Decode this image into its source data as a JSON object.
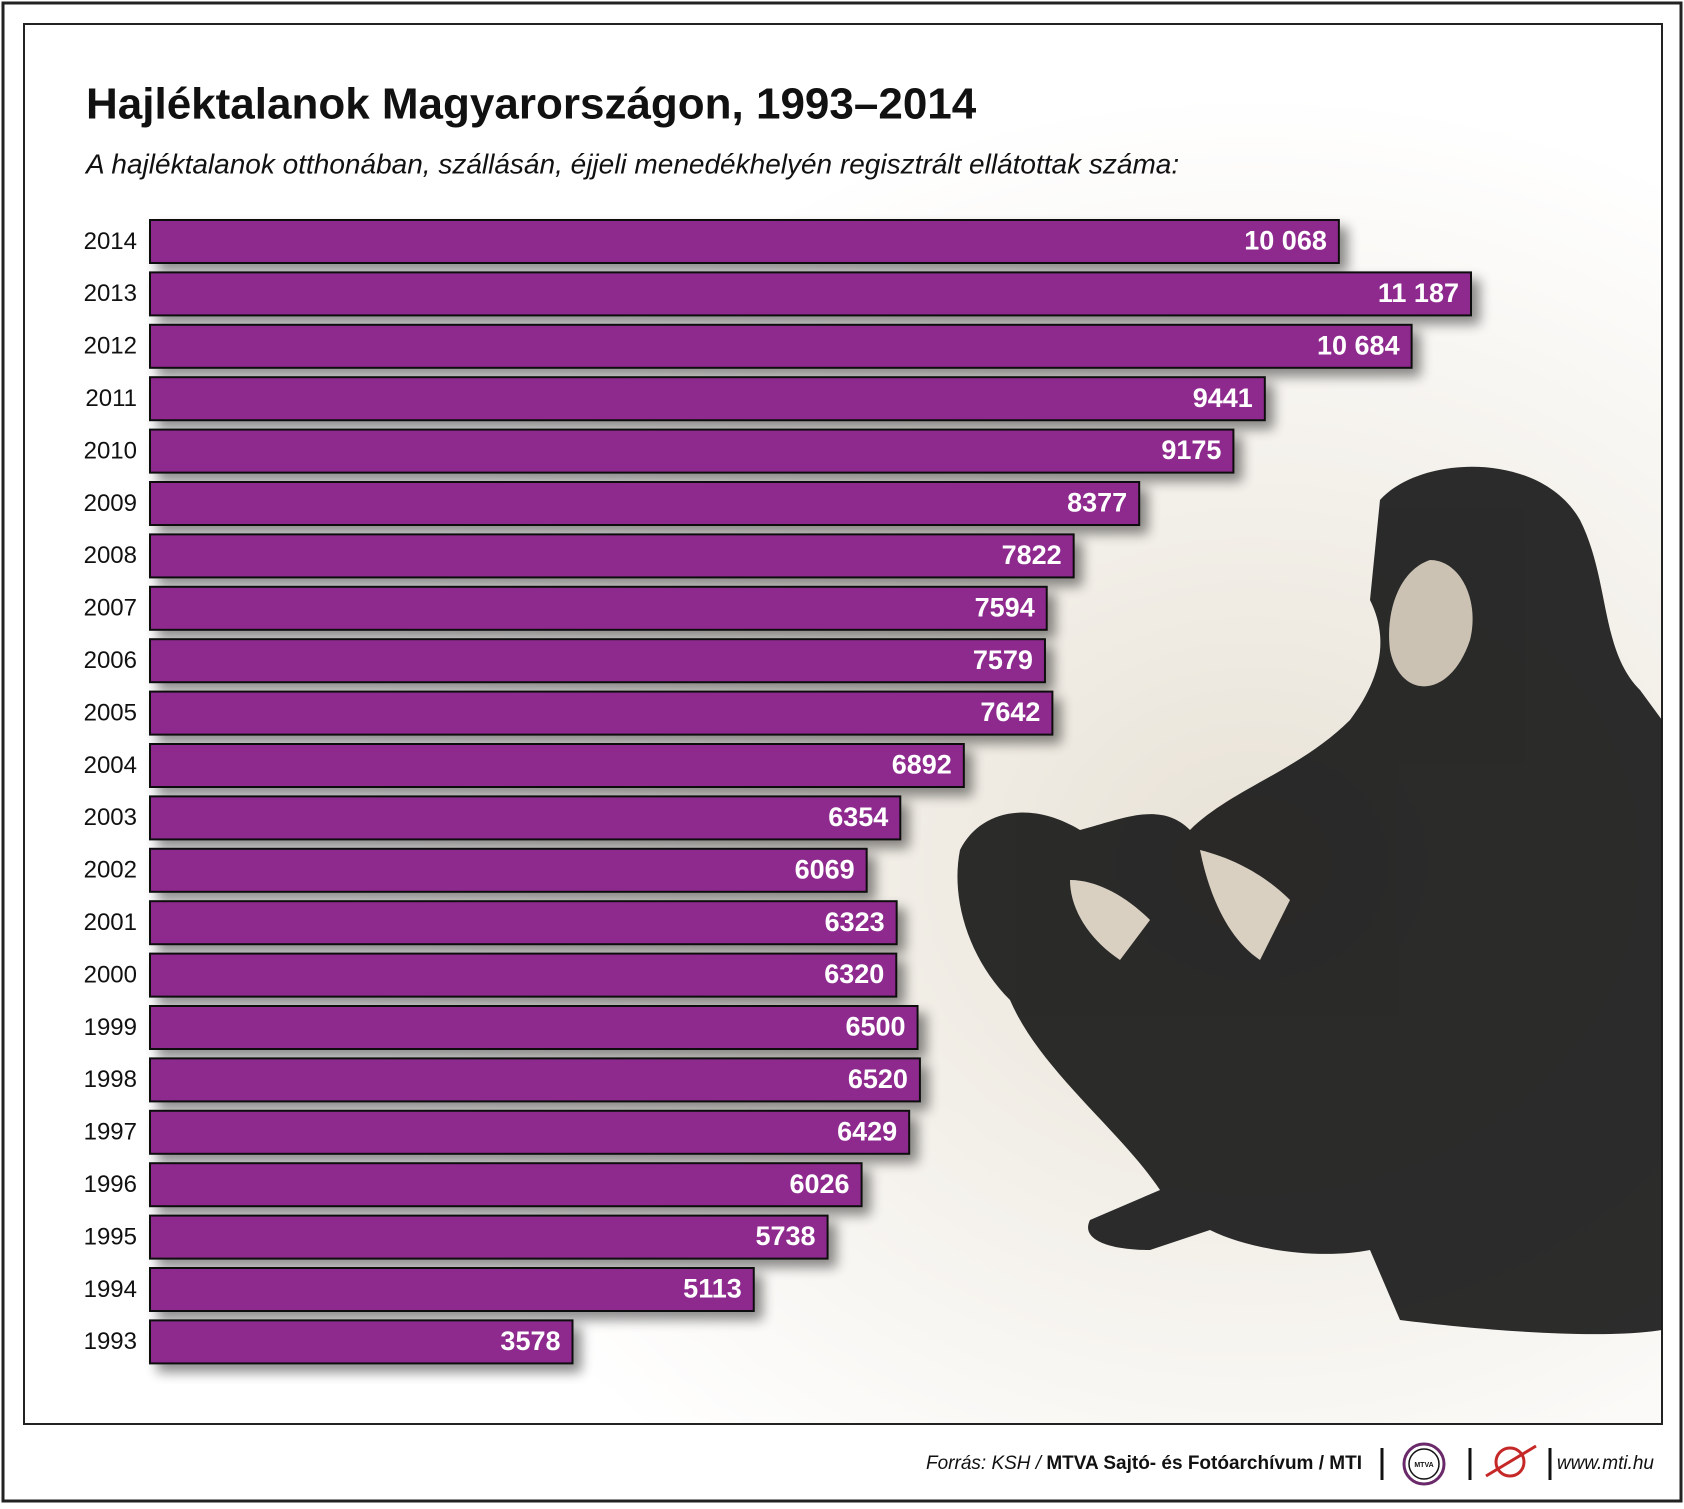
{
  "chart_data": {
    "type": "hbar",
    "title": "Hajléktalanok Magyarországon, 1993–2014",
    "subtitle": "A hajléktalanok otthonában, szállásán, éjjeli menedékhelyén regisztrált ellátottak száma:",
    "categories": [
      "2014",
      "2013",
      "2012",
      "2011",
      "2010",
      "2009",
      "2008",
      "2007",
      "2006",
      "2005",
      "2004",
      "2003",
      "2002",
      "2001",
      "2000",
      "1999",
      "1998",
      "1997",
      "1996",
      "1995",
      "1994",
      "1993"
    ],
    "values": [
      10068,
      11187,
      10684,
      9441,
      9175,
      8377,
      7822,
      7594,
      7579,
      7642,
      6892,
      6354,
      6069,
      6323,
      6320,
      6500,
      6520,
      6429,
      6026,
      5738,
      5113,
      3578
    ],
    "value_labels": [
      "10 068",
      "11 187",
      "10 684",
      "9441",
      "9175",
      "8377",
      "7822",
      "7594",
      "7579",
      "7642",
      "6892",
      "6354",
      "6069",
      "6323",
      "6320",
      "6500",
      "6520",
      "6429",
      "6026",
      "5738",
      "5113",
      "3578"
    ],
    "color": "#8e2a8e",
    "xlim": [
      0,
      12000
    ]
  },
  "footer": {
    "source": "Forrás: KSH /",
    "publisher": "MTVA Sajtó- és Fotóarchívum / MTI",
    "logo": "MTVA",
    "url": "www.mti.hu"
  }
}
